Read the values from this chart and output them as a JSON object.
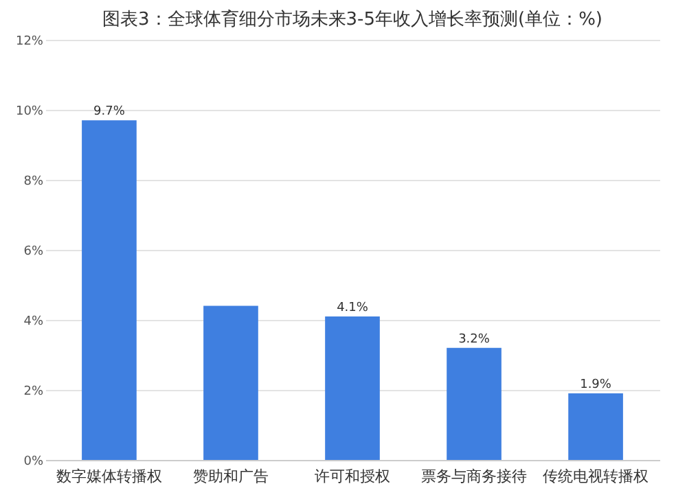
{
  "chart_data": {
    "type": "bar",
    "title": "图表3：全球体育细分市场未来3-5年收入增长率预测(单位：%)",
    "categories": [
      "数字媒体转播权",
      "赞助和广告",
      "许可和授权",
      "票务与商务接待",
      "传统电视转播权"
    ],
    "values": [
      9.7,
      4.4,
      4.1,
      3.2,
      1.9
    ],
    "value_labels": [
      "9.7%",
      null,
      "4.1%",
      "3.2%",
      "1.9%"
    ],
    "color": "#3f7fe0",
    "ylim": [
      0,
      12
    ],
    "yticks": [
      {
        "value": 0,
        "label": "0%"
      },
      {
        "value": 2,
        "label": "2%"
      },
      {
        "value": 4,
        "label": "4%"
      },
      {
        "value": 6,
        "label": "6%"
      },
      {
        "value": 8,
        "label": "8%"
      },
      {
        "value": 10,
        "label": "10%"
      },
      {
        "value": 12,
        "label": "12%"
      }
    ],
    "grid": "y"
  }
}
